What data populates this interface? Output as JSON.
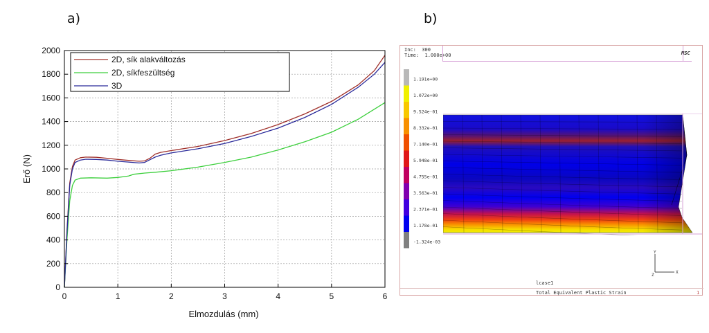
{
  "panel_labels": {
    "a": "a)",
    "b": "b)"
  },
  "chart_data": [
    {
      "type": "line",
      "title": "",
      "xlabel": "Elmozdulás (mm)",
      "ylabel": "Erő (N)",
      "xlim": [
        0,
        6
      ],
      "ylim": [
        0,
        2000
      ],
      "xticks": [
        0,
        1,
        2,
        3,
        4,
        5,
        6
      ],
      "yticks": [
        0,
        200,
        400,
        600,
        800,
        1000,
        1200,
        1400,
        1600,
        1800,
        2000
      ],
      "grid": true,
      "legend_position": "top-left",
      "series": [
        {
          "name": "2D, sík alakváltozás",
          "color": "#a0302a",
          "points": [
            [
              0,
              0
            ],
            [
              0.05,
              500
            ],
            [
              0.1,
              880
            ],
            [
              0.15,
              1020
            ],
            [
              0.2,
              1075
            ],
            [
              0.3,
              1095
            ],
            [
              0.4,
              1100
            ],
            [
              0.6,
              1098
            ],
            [
              0.8,
              1090
            ],
            [
              1.0,
              1080
            ],
            [
              1.2,
              1072
            ],
            [
              1.4,
              1065
            ],
            [
              1.5,
              1068
            ],
            [
              1.6,
              1090
            ],
            [
              1.7,
              1125
            ],
            [
              1.8,
              1140
            ],
            [
              2.0,
              1155
            ],
            [
              2.5,
              1190
            ],
            [
              3.0,
              1240
            ],
            [
              3.5,
              1300
            ],
            [
              4.0,
              1375
            ],
            [
              4.5,
              1465
            ],
            [
              5.0,
              1570
            ],
            [
              5.5,
              1710
            ],
            [
              5.8,
              1830
            ],
            [
              6.0,
              1960
            ]
          ]
        },
        {
          "name": "2D, síkfeszültség",
          "color": "#3ccf3c",
          "points": [
            [
              0,
              0
            ],
            [
              0.05,
              420
            ],
            [
              0.1,
              730
            ],
            [
              0.15,
              860
            ],
            [
              0.2,
              905
            ],
            [
              0.3,
              922
            ],
            [
              0.5,
              925
            ],
            [
              0.8,
              922
            ],
            [
              1.0,
              928
            ],
            [
              1.2,
              940
            ],
            [
              1.3,
              955
            ],
            [
              1.5,
              965
            ],
            [
              1.7,
              972
            ],
            [
              2.0,
              985
            ],
            [
              2.5,
              1015
            ],
            [
              3.0,
              1055
            ],
            [
              3.5,
              1100
            ],
            [
              4.0,
              1160
            ],
            [
              4.5,
              1230
            ],
            [
              5.0,
              1310
            ],
            [
              5.5,
              1420
            ],
            [
              6.0,
              1560
            ]
          ]
        },
        {
          "name": "3D",
          "color": "#2a2a9a",
          "points": [
            [
              0,
              0
            ],
            [
              0.05,
              480
            ],
            [
              0.1,
              860
            ],
            [
              0.15,
              1000
            ],
            [
              0.2,
              1055
            ],
            [
              0.3,
              1075
            ],
            [
              0.4,
              1082
            ],
            [
              0.6,
              1080
            ],
            [
              0.8,
              1075
            ],
            [
              1.0,
              1065
            ],
            [
              1.2,
              1058
            ],
            [
              1.4,
              1050
            ],
            [
              1.5,
              1055
            ],
            [
              1.6,
              1078
            ],
            [
              1.7,
              1100
            ],
            [
              1.8,
              1115
            ],
            [
              2.0,
              1135
            ],
            [
              2.5,
              1170
            ],
            [
              3.0,
              1215
            ],
            [
              3.5,
              1275
            ],
            [
              4.0,
              1345
            ],
            [
              4.5,
              1435
            ],
            [
              5.0,
              1545
            ],
            [
              5.5,
              1690
            ],
            [
              5.8,
              1800
            ],
            [
              6.0,
              1900
            ]
          ]
        }
      ]
    }
  ],
  "fe_panel": {
    "inc_label": "Inc:  300",
    "time_label": "Time:  1.000e+00",
    "logo": "MSC",
    "scale_values": [
      "1.191e+00",
      "1.072e+00",
      "9.524e-01",
      "8.332e-01",
      "7.140e-01",
      "5.948e-01",
      "4.755e-01",
      "3.563e-01",
      "2.371e-01",
      "1.178e-01",
      "-1.324e-03"
    ],
    "scale_colors": [
      "#b8b8b8",
      "#f0f000",
      "#f8c800",
      "#f89000",
      "#f05000",
      "#e01818",
      "#c00060",
      "#8000b0",
      "#4000e0",
      "#0000f0",
      "#808080"
    ],
    "axis_y": "Y",
    "axis_z": "Z",
    "axis_x": "X",
    "case_label": "lcase1",
    "result_label": "Total Equivalent Plastic Strain",
    "page_number": "1"
  }
}
